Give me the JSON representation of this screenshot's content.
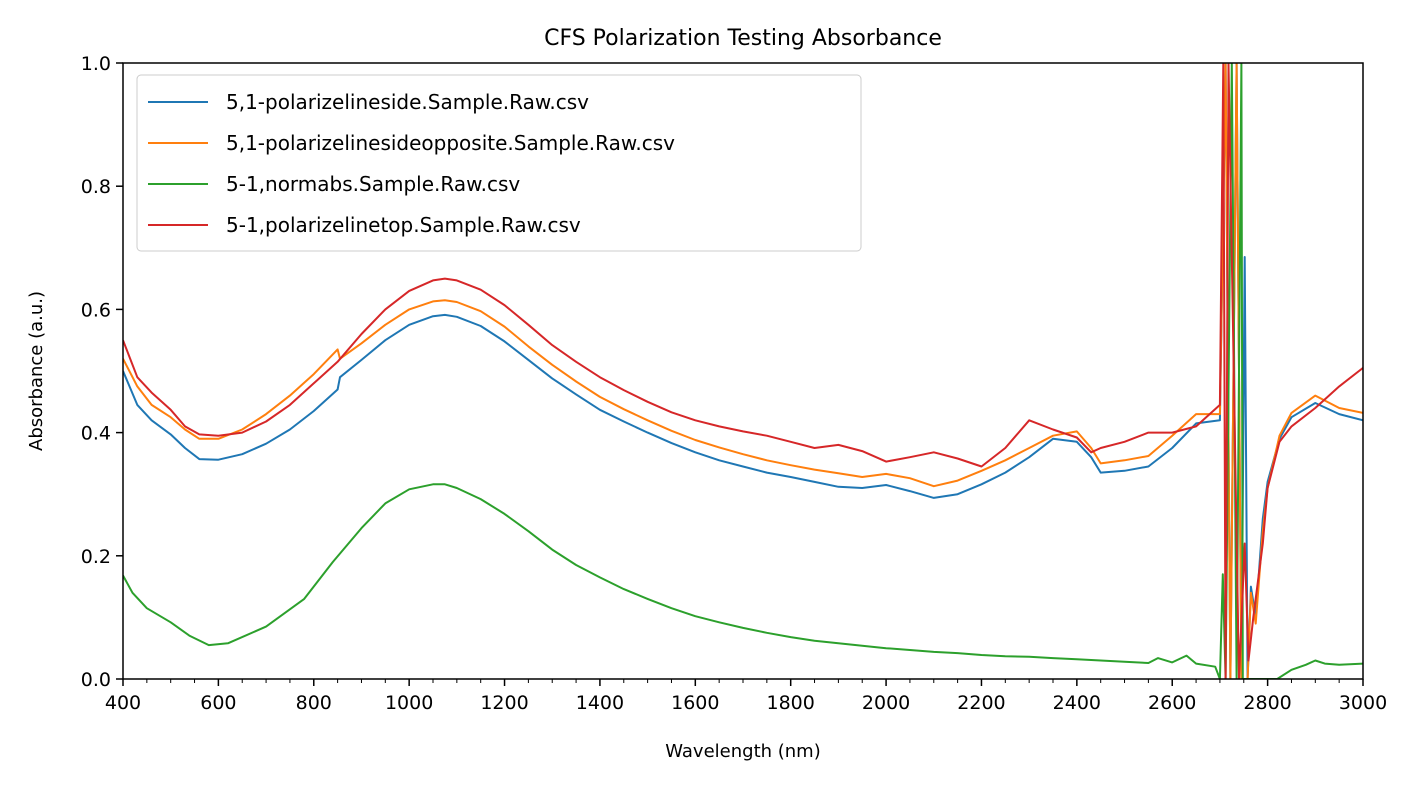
{
  "chart_data": {
    "type": "line",
    "title": "CFS Polarization Testing Absorbance",
    "xlabel": "Wavelength (nm)",
    "ylabel": "Absorbance (a.u.)",
    "xlim": [
      400,
      3000
    ],
    "ylim": [
      0.0,
      1.0
    ],
    "xticks": [
      "400",
      "600",
      "800",
      "1000",
      "1200",
      "1400",
      "1600",
      "1800",
      "2000",
      "2200",
      "2400",
      "2600",
      "2800",
      "3000"
    ],
    "yticks": [
      "0.0",
      "0.2",
      "0.4",
      "0.6",
      "0.8",
      "1.0"
    ],
    "grid": false,
    "legend_position": "top-left",
    "series": [
      {
        "name": "5,1-polarizelineside.Sample.Raw.csv",
        "color": "#1f77b4",
        "points": [
          [
            400,
            0.5
          ],
          [
            430,
            0.445
          ],
          [
            460,
            0.42
          ],
          [
            500,
            0.397
          ],
          [
            530,
            0.375
          ],
          [
            560,
            0.357
          ],
          [
            600,
            0.356
          ],
          [
            650,
            0.365
          ],
          [
            700,
            0.382
          ],
          [
            750,
            0.405
          ],
          [
            800,
            0.435
          ],
          [
            850,
            0.47
          ],
          [
            855,
            0.49
          ],
          [
            900,
            0.518
          ],
          [
            950,
            0.55
          ],
          [
            1000,
            0.575
          ],
          [
            1050,
            0.589
          ],
          [
            1075,
            0.591
          ],
          [
            1100,
            0.588
          ],
          [
            1150,
            0.573
          ],
          [
            1200,
            0.548
          ],
          [
            1250,
            0.518
          ],
          [
            1300,
            0.488
          ],
          [
            1350,
            0.462
          ],
          [
            1400,
            0.437
          ],
          [
            1450,
            0.418
          ],
          [
            1500,
            0.4
          ],
          [
            1550,
            0.383
          ],
          [
            1600,
            0.368
          ],
          [
            1650,
            0.355
          ],
          [
            1700,
            0.345
          ],
          [
            1750,
            0.335
          ],
          [
            1800,
            0.328
          ],
          [
            1850,
            0.32
          ],
          [
            1900,
            0.312
          ],
          [
            1950,
            0.31
          ],
          [
            2000,
            0.315
          ],
          [
            2050,
            0.305
          ],
          [
            2100,
            0.294
          ],
          [
            2150,
            0.3
          ],
          [
            2200,
            0.316
          ],
          [
            2250,
            0.335
          ],
          [
            2300,
            0.36
          ],
          [
            2350,
            0.39
          ],
          [
            2400,
            0.385
          ],
          [
            2430,
            0.36
          ],
          [
            2450,
            0.335
          ],
          [
            2500,
            0.338
          ],
          [
            2550,
            0.345
          ],
          [
            2600,
            0.375
          ],
          [
            2650,
            0.415
          ],
          [
            2700,
            0.42
          ],
          [
            2712,
            1.0
          ],
          [
            2722,
            0.0
          ],
          [
            2735,
            1.0
          ],
          [
            2745,
            0.0
          ],
          [
            2752,
            0.685
          ],
          [
            2758,
            0.0
          ],
          [
            2765,
            0.15
          ],
          [
            2775,
            0.1
          ],
          [
            2790,
            0.26
          ],
          [
            2800,
            0.32
          ],
          [
            2825,
            0.39
          ],
          [
            2850,
            0.425
          ],
          [
            2900,
            0.448
          ],
          [
            2950,
            0.43
          ],
          [
            3000,
            0.42
          ]
        ]
      },
      {
        "name": "5,1-polarizelinesideopposite.Sample.Raw.csv",
        "color": "#ff7f0e",
        "points": [
          [
            400,
            0.52
          ],
          [
            430,
            0.475
          ],
          [
            460,
            0.445
          ],
          [
            500,
            0.425
          ],
          [
            530,
            0.405
          ],
          [
            560,
            0.39
          ],
          [
            600,
            0.39
          ],
          [
            650,
            0.405
          ],
          [
            700,
            0.43
          ],
          [
            750,
            0.46
          ],
          [
            800,
            0.495
          ],
          [
            850,
            0.535
          ],
          [
            855,
            0.52
          ],
          [
            900,
            0.545
          ],
          [
            950,
            0.575
          ],
          [
            1000,
            0.6
          ],
          [
            1050,
            0.613
          ],
          [
            1075,
            0.615
          ],
          [
            1100,
            0.612
          ],
          [
            1150,
            0.597
          ],
          [
            1200,
            0.572
          ],
          [
            1250,
            0.54
          ],
          [
            1300,
            0.51
          ],
          [
            1350,
            0.483
          ],
          [
            1400,
            0.458
          ],
          [
            1450,
            0.438
          ],
          [
            1500,
            0.42
          ],
          [
            1550,
            0.403
          ],
          [
            1600,
            0.388
          ],
          [
            1650,
            0.376
          ],
          [
            1700,
            0.365
          ],
          [
            1750,
            0.355
          ],
          [
            1800,
            0.347
          ],
          [
            1850,
            0.34
          ],
          [
            1900,
            0.334
          ],
          [
            1950,
            0.328
          ],
          [
            2000,
            0.333
          ],
          [
            2050,
            0.326
          ],
          [
            2100,
            0.313
          ],
          [
            2150,
            0.322
          ],
          [
            2200,
            0.338
          ],
          [
            2250,
            0.355
          ],
          [
            2300,
            0.375
          ],
          [
            2350,
            0.395
          ],
          [
            2400,
            0.402
          ],
          [
            2430,
            0.375
          ],
          [
            2450,
            0.35
          ],
          [
            2500,
            0.355
          ],
          [
            2550,
            0.362
          ],
          [
            2600,
            0.395
          ],
          [
            2650,
            0.43
          ],
          [
            2700,
            0.43
          ],
          [
            2712,
            1.0
          ],
          [
            2722,
            0.0
          ],
          [
            2735,
            1.0
          ],
          [
            2745,
            0.0
          ],
          [
            2758,
            0.0
          ],
          [
            2765,
            0.14
          ],
          [
            2775,
            0.09
          ],
          [
            2790,
            0.24
          ],
          [
            2800,
            0.31
          ],
          [
            2825,
            0.395
          ],
          [
            2850,
            0.432
          ],
          [
            2900,
            0.46
          ],
          [
            2950,
            0.44
          ],
          [
            3000,
            0.432
          ]
        ]
      },
      {
        "name": "5-1,normabs.Sample.Raw.csv",
        "color": "#2ca02c",
        "points": [
          [
            400,
            0.168
          ],
          [
            420,
            0.14
          ],
          [
            450,
            0.115
          ],
          [
            500,
            0.092
          ],
          [
            540,
            0.07
          ],
          [
            580,
            0.055
          ],
          [
            620,
            0.058
          ],
          [
            700,
            0.085
          ],
          [
            780,
            0.13
          ],
          [
            840,
            0.19
          ],
          [
            900,
            0.245
          ],
          [
            950,
            0.285
          ],
          [
            1000,
            0.308
          ],
          [
            1050,
            0.316
          ],
          [
            1075,
            0.316
          ],
          [
            1100,
            0.31
          ],
          [
            1150,
            0.292
          ],
          [
            1200,
            0.268
          ],
          [
            1250,
            0.24
          ],
          [
            1300,
            0.21
          ],
          [
            1350,
            0.185
          ],
          [
            1400,
            0.165
          ],
          [
            1450,
            0.146
          ],
          [
            1500,
            0.13
          ],
          [
            1550,
            0.115
          ],
          [
            1600,
            0.102
          ],
          [
            1650,
            0.092
          ],
          [
            1700,
            0.083
          ],
          [
            1750,
            0.075
          ],
          [
            1800,
            0.068
          ],
          [
            1850,
            0.062
          ],
          [
            1900,
            0.058
          ],
          [
            1950,
            0.054
          ],
          [
            2000,
            0.05
          ],
          [
            2050,
            0.047
          ],
          [
            2100,
            0.044
          ],
          [
            2150,
            0.042
          ],
          [
            2200,
            0.039
          ],
          [
            2250,
            0.037
          ],
          [
            2300,
            0.036
          ],
          [
            2350,
            0.034
          ],
          [
            2400,
            0.032
          ],
          [
            2450,
            0.03
          ],
          [
            2500,
            0.028
          ],
          [
            2550,
            0.026
          ],
          [
            2570,
            0.034
          ],
          [
            2600,
            0.027
          ],
          [
            2630,
            0.038
          ],
          [
            2650,
            0.025
          ],
          [
            2690,
            0.02
          ],
          [
            2700,
            0.0
          ],
          [
            2706,
            0.17
          ],
          [
            2712,
            0.0
          ],
          [
            2725,
            1.0
          ],
          [
            2735,
            0.0
          ],
          [
            2745,
            1.0
          ],
          [
            2748,
            0.0
          ],
          [
            2820,
            0.0
          ],
          [
            2850,
            0.015
          ],
          [
            2880,
            0.023
          ],
          [
            2900,
            0.03
          ],
          [
            2920,
            0.025
          ],
          [
            2950,
            0.023
          ],
          [
            3000,
            0.025
          ]
        ]
      },
      {
        "name": "5-1,polarizelinetop.Sample.Raw.csv",
        "color": "#d62728",
        "points": [
          [
            400,
            0.55
          ],
          [
            430,
            0.49
          ],
          [
            460,
            0.465
          ],
          [
            500,
            0.437
          ],
          [
            530,
            0.41
          ],
          [
            560,
            0.397
          ],
          [
            600,
            0.395
          ],
          [
            650,
            0.4
          ],
          [
            700,
            0.418
          ],
          [
            750,
            0.445
          ],
          [
            800,
            0.48
          ],
          [
            850,
            0.515
          ],
          [
            900,
            0.56
          ],
          [
            950,
            0.6
          ],
          [
            1000,
            0.63
          ],
          [
            1050,
            0.647
          ],
          [
            1075,
            0.65
          ],
          [
            1100,
            0.647
          ],
          [
            1150,
            0.632
          ],
          [
            1200,
            0.607
          ],
          [
            1250,
            0.575
          ],
          [
            1300,
            0.542
          ],
          [
            1350,
            0.515
          ],
          [
            1400,
            0.49
          ],
          [
            1450,
            0.469
          ],
          [
            1500,
            0.45
          ],
          [
            1550,
            0.433
          ],
          [
            1600,
            0.42
          ],
          [
            1650,
            0.41
          ],
          [
            1700,
            0.402
          ],
          [
            1750,
            0.395
          ],
          [
            1800,
            0.385
          ],
          [
            1850,
            0.375
          ],
          [
            1900,
            0.38
          ],
          [
            1950,
            0.37
          ],
          [
            2000,
            0.353
          ],
          [
            2050,
            0.36
          ],
          [
            2100,
            0.368
          ],
          [
            2150,
            0.358
          ],
          [
            2200,
            0.345
          ],
          [
            2250,
            0.375
          ],
          [
            2300,
            0.42
          ],
          [
            2350,
            0.405
          ],
          [
            2400,
            0.392
          ],
          [
            2430,
            0.368
          ],
          [
            2450,
            0.375
          ],
          [
            2500,
            0.385
          ],
          [
            2550,
            0.4
          ],
          [
            2600,
            0.4
          ],
          [
            2650,
            0.41
          ],
          [
            2700,
            0.445
          ],
          [
            2707,
            1.0
          ],
          [
            2712,
            0.0
          ],
          [
            2718,
            1.0
          ],
          [
            2740,
            0.0
          ],
          [
            2752,
            0.22
          ],
          [
            2760,
            0.03
          ],
          [
            2770,
            0.1
          ],
          [
            2790,
            0.22
          ],
          [
            2800,
            0.31
          ],
          [
            2825,
            0.385
          ],
          [
            2850,
            0.41
          ],
          [
            2900,
            0.44
          ],
          [
            2950,
            0.475
          ],
          [
            3000,
            0.505
          ]
        ]
      }
    ]
  }
}
